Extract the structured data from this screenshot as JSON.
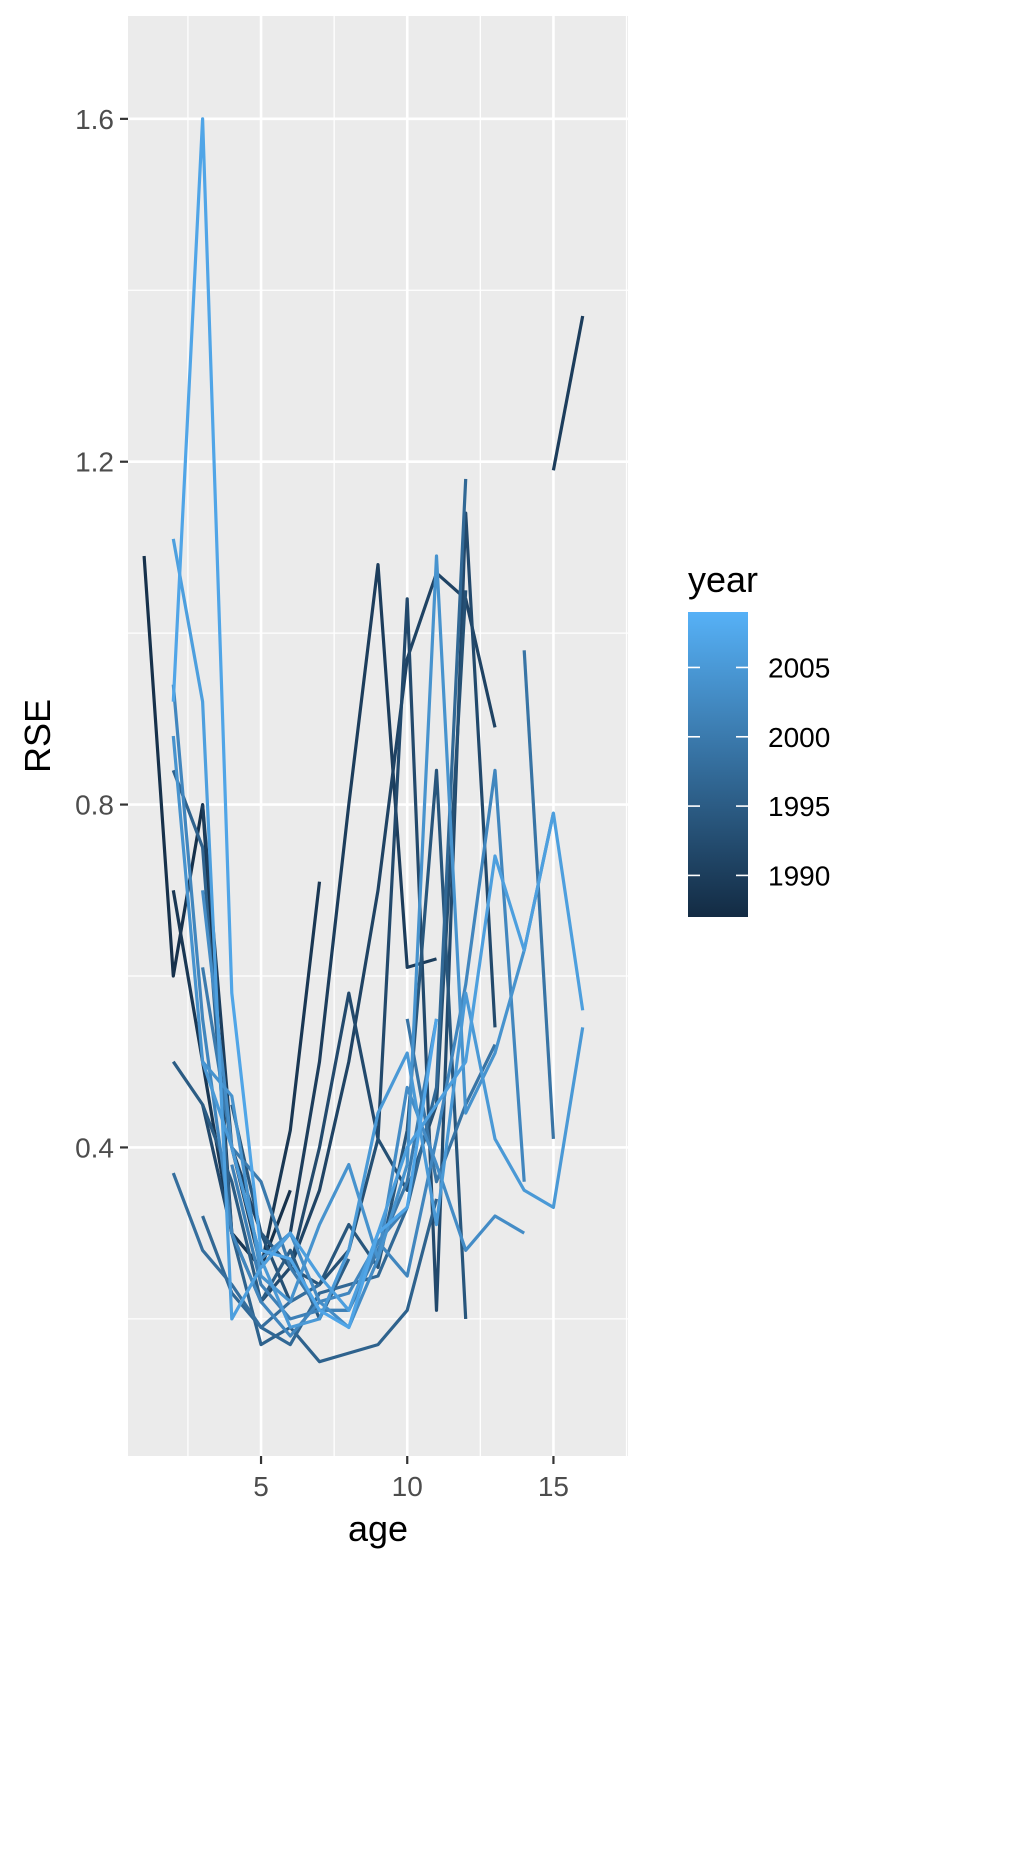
{
  "chart_data": {
    "type": "line",
    "title": "",
    "xlabel": "age",
    "ylabel": "RSE",
    "xlim": [
      0.45,
      17.55
    ],
    "ylim": [
      0.04,
      1.72
    ],
    "x_ticks": [
      5,
      10,
      15
    ],
    "x_tick_labels": [
      "5",
      "10",
      "15"
    ],
    "y_ticks": [
      0.4,
      0.8,
      1.2,
      1.6
    ],
    "y_tick_labels": [
      "0.4",
      "0.8",
      "1.2",
      "1.6"
    ],
    "grid": true,
    "legend": {
      "title": "year",
      "placement": "right",
      "type": "colorbar",
      "range": [
        1987,
        2009
      ],
      "breaks": [
        2005,
        2000,
        1995,
        1990
      ],
      "break_labels": [
        "2005",
        "2000",
        "1995",
        "1990"
      ],
      "low_color": "#132B43",
      "high_color": "#56B1F7"
    },
    "series": [
      {
        "year": 1988,
        "x": [
          1,
          2,
          3,
          4,
          5,
          6
        ],
        "y": [
          1.09,
          0.6,
          0.8,
          0.3,
          0.26,
          0.35
        ]
      },
      {
        "year": 1989,
        "x": [
          2,
          3,
          4,
          5,
          6,
          7
        ],
        "y": [
          0.7,
          0.5,
          0.3,
          0.26,
          0.42,
          0.71
        ]
      },
      {
        "year": 1990,
        "x": [
          3,
          4,
          5,
          6,
          7,
          8,
          9,
          10,
          11
        ],
        "y": [
          0.8,
          0.4,
          0.26,
          0.3,
          0.5,
          0.8,
          1.08,
          0.61,
          0.62
        ]
      },
      {
        "year": 1990,
        "x": [
          15,
          16
        ],
        "y": [
          1.19,
          1.37
        ]
      },
      {
        "year": 1991,
        "x": [
          4,
          5,
          6,
          7,
          8,
          9,
          10,
          11,
          12,
          13
        ],
        "y": [
          0.4,
          0.3,
          0.26,
          0.35,
          0.5,
          0.7,
          0.97,
          1.07,
          1.04,
          0.89
        ]
      },
      {
        "year": 1992,
        "x": [
          3,
          4,
          5,
          6,
          7,
          8,
          9,
          10,
          11,
          12,
          13
        ],
        "y": [
          0.45,
          0.3,
          0.22,
          0.26,
          0.4,
          0.58,
          0.41,
          1.04,
          0.21,
          1.14,
          0.54
        ]
      },
      {
        "year": 1993,
        "x": [
          5,
          6,
          7,
          8,
          9,
          10,
          11,
          12
        ],
        "y": [
          0.3,
          0.22,
          0.24,
          0.28,
          0.41,
          0.35,
          0.45,
          1.05
        ]
      },
      {
        "year": 1994,
        "x": [
          4,
          5,
          6,
          7,
          8,
          9,
          10,
          11,
          12
        ],
        "y": [
          0.45,
          0.3,
          0.26,
          0.24,
          0.31,
          0.26,
          0.42,
          0.84,
          0.2
        ]
      },
      {
        "year": 1995,
        "x": [
          2,
          3,
          4,
          5,
          6,
          7,
          8
        ],
        "y": [
          0.5,
          0.45,
          0.36,
          0.22,
          0.28,
          0.2,
          0.27
        ]
      },
      {
        "year": 1996,
        "x": [
          2,
          3,
          4,
          5,
          6,
          7,
          8,
          9,
          10,
          11
        ],
        "y": [
          0.84,
          0.75,
          0.3,
          0.17,
          0.19,
          0.15,
          0.16,
          0.17,
          0.21,
          0.34
        ]
      },
      {
        "year": 1997,
        "x": [
          3,
          4,
          5,
          6,
          7,
          8,
          9,
          10,
          11,
          12
        ],
        "y": [
          0.32,
          0.23,
          0.19,
          0.17,
          0.23,
          0.24,
          0.25,
          0.33,
          0.47,
          1.18
        ]
      },
      {
        "year": 1998,
        "x": [
          2,
          3,
          4,
          5,
          6,
          7
        ],
        "y": [
          0.37,
          0.28,
          0.24,
          0.19,
          0.22,
          0.24
        ]
      },
      {
        "year": 1999,
        "x": [
          10,
          11,
          12,
          13
        ],
        "y": [
          0.55,
          0.36,
          0.45,
          0.52
        ]
      },
      {
        "year": 1999,
        "x": [
          14,
          15
        ],
        "y": [
          0.98,
          0.41
        ]
      },
      {
        "year": 2000,
        "x": [
          3,
          4,
          5,
          6,
          7,
          8,
          9,
          10,
          11
        ],
        "y": [
          0.61,
          0.4,
          0.36,
          0.26,
          0.21,
          0.21,
          0.28,
          0.36,
          0.55
        ]
      },
      {
        "year": 2001,
        "x": [
          4,
          5,
          6,
          7,
          8,
          9,
          10
        ],
        "y": [
          0.38,
          0.24,
          0.2,
          0.21,
          0.21,
          0.29,
          0.33
        ]
      },
      {
        "year": 2002,
        "x": [
          2,
          3,
          4,
          5,
          6,
          7,
          8,
          9,
          10,
          11,
          12,
          13,
          14
        ],
        "y": [
          0.94,
          0.55,
          0.3,
          0.22,
          0.18,
          0.22,
          0.23,
          0.29,
          0.25,
          0.41,
          0.59,
          0.84,
          0.36
        ]
      },
      {
        "year": 2003,
        "x": [
          3,
          4,
          5,
          6,
          7,
          8,
          9,
          10,
          11,
          12,
          13,
          14
        ],
        "y": [
          0.7,
          0.4,
          0.27,
          0.3,
          0.22,
          0.19,
          0.27,
          0.47,
          0.38,
          0.28,
          0.32,
          0.3
        ]
      },
      {
        "year": 2004,
        "x": [
          2,
          3,
          4,
          5,
          6,
          7,
          8,
          9,
          10,
          11,
          12,
          13,
          14,
          15
        ],
        "y": [
          0.88,
          0.5,
          0.46,
          0.25,
          0.22,
          0.31,
          0.38,
          0.27,
          0.38,
          1.09,
          0.44,
          0.51,
          0.63,
          0.79
        ]
      },
      {
        "year": 2005,
        "x": [
          3,
          4,
          5,
          6,
          7,
          8,
          9,
          10,
          11,
          12,
          13,
          14,
          15,
          16
        ],
        "y": [
          0.5,
          0.4,
          0.27,
          0.19,
          0.2,
          0.28,
          0.44,
          0.51,
          0.31,
          0.58,
          0.41,
          0.35,
          0.33,
          0.54
        ]
      },
      {
        "year": 2006,
        "x": [
          2,
          3,
          4,
          5,
          6,
          7,
          8,
          9,
          10,
          11,
          12,
          13,
          14,
          15,
          16
        ],
        "y": [
          1.11,
          0.92,
          0.2,
          0.26,
          0.3,
          0.25,
          0.21,
          0.3,
          0.4,
          0.45,
          0.5,
          0.74,
          0.63,
          0.79,
          0.56
        ]
      },
      {
        "year": 2007,
        "x": [
          2,
          3,
          4,
          5,
          6,
          7,
          8,
          9,
          10,
          11
        ],
        "y": [
          0.92,
          1.6,
          0.58,
          0.28,
          0.27,
          0.21,
          0.19,
          0.3,
          0.33,
          0.55
        ]
      }
    ]
  }
}
